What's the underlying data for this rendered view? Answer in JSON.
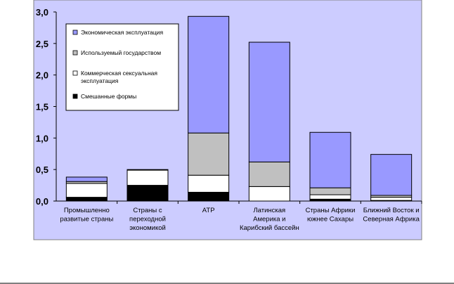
{
  "chart_data": {
    "type": "bar",
    "stacked": true,
    "title": "",
    "xlabel": "",
    "ylabel": "",
    "ylim": [
      0,
      3.0
    ],
    "yticks": [
      "0,0",
      "0,5",
      "1,0",
      "1,5",
      "2,0",
      "2,5",
      "3,0"
    ],
    "grid": false,
    "legend_position": "top-left",
    "categories": [
      [
        "Промышленно",
        "развитые страны"
      ],
      [
        "Страны с",
        "переходной",
        "экономикой"
      ],
      [
        "АТР"
      ],
      [
        "Латинская",
        "Америка и",
        "Карибский бассейн"
      ],
      [
        "Страны Африки",
        "южнее Сахары"
      ],
      [
        "Ближний Восток и",
        "Северная Африка"
      ]
    ],
    "series": [
      {
        "name": "Смешанные формы",
        "color": "#000000",
        "values": [
          0.06,
          0.25,
          0.14,
          0.0,
          0.03,
          0.01
        ]
      },
      {
        "name": "Коммерческая сексуальная эксплуатация",
        "color": "#ffffff",
        "values": [
          0.22,
          0.24,
          0.27,
          0.23,
          0.07,
          0.05
        ]
      },
      {
        "name": "Используемый государством",
        "color": "#c0c0c0",
        "values": [
          0.03,
          0.01,
          0.67,
          0.39,
          0.11,
          0.03
        ]
      },
      {
        "name": "Экономическая эксплуатация",
        "color": "#9999ff",
        "values": [
          0.07,
          0.0,
          1.85,
          1.9,
          0.88,
          0.65
        ]
      }
    ],
    "legend_order": [
      "Экономическая эксплуатация",
      "Используемый государством",
      "Коммерческая сексуальная эксплуатация",
      "Смешанные формы"
    ],
    "legend_lines": [
      [
        "Экономическая эксплуатация"
      ],
      [
        "Используемый государством"
      ],
      [
        "Коммерческая сексуальная",
        "эксплуатация"
      ],
      [
        "Смешанные формы"
      ]
    ]
  },
  "colors": {
    "plot_background": "#ccccff",
    "plot_border": "#808080",
    "axis": "#000000",
    "bar_border": "#000000"
  }
}
